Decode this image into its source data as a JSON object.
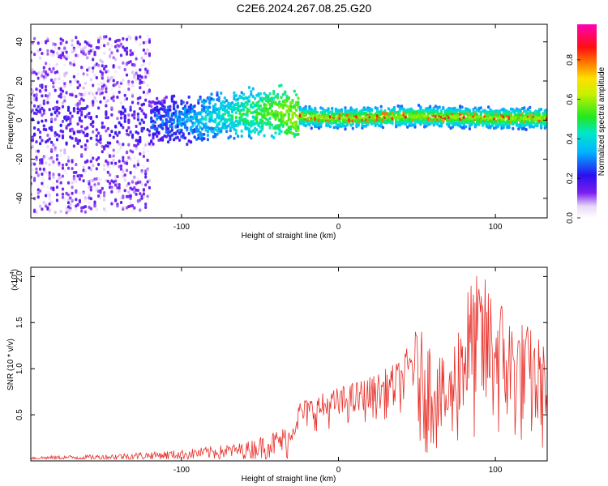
{
  "title": "C2E6.2024.267.08.25.G20",
  "chart_data": [
    {
      "type": "heatmap",
      "xlabel": "Height of straight line (km)",
      "ylabel": "Frequency (Hz)",
      "xlim": [
        -196,
        133
      ],
      "ylim": [
        -50,
        49
      ],
      "xticks": [
        -100,
        0,
        100
      ],
      "yticks": [
        -40,
        -20,
        0,
        20,
        40
      ],
      "colorbar": {
        "label": "Normalized spectral amplitude",
        "range": [
          0.0,
          0.98
        ],
        "ticks": [
          "0.0",
          "0.2",
          "0.4",
          "0.6",
          "0.8"
        ]
      },
      "ridge": {
        "x": [
          -196,
          -150,
          -100,
          -60,
          -35,
          -28,
          0,
          50,
          100,
          133
        ],
        "y": [
          -3,
          -2,
          0,
          3,
          5,
          2,
          1,
          2,
          1,
          1
        ]
      }
    },
    {
      "type": "line",
      "xlabel": "Height of straight line (km)",
      "ylabel": "SNR (10 * v/v)",
      "y_multiplier": "(x10",
      "y_multiplier_exp": "4",
      "xlim": [
        -196,
        133
      ],
      "ylim": [
        0,
        2.1
      ],
      "xticks": [
        -100,
        0,
        100
      ],
      "yticks": [
        "0.5",
        "1.0",
        "1.5",
        "2.0"
      ],
      "series": [
        {
          "color": "#e8302a",
          "envelope_x": [
            -196,
            -150,
            -100,
            -60,
            -30,
            -25,
            0,
            25,
            40,
            50,
            60,
            70,
            80,
            90,
            100,
            110,
            120,
            133
          ],
          "envelope_y": [
            0.05,
            0.07,
            0.12,
            0.2,
            0.4,
            0.65,
            0.8,
            0.95,
            1.1,
            1.45,
            1.3,
            1.0,
            1.9,
            2.05,
            1.9,
            1.6,
            1.5,
            1.25
          ]
        }
      ]
    }
  ]
}
